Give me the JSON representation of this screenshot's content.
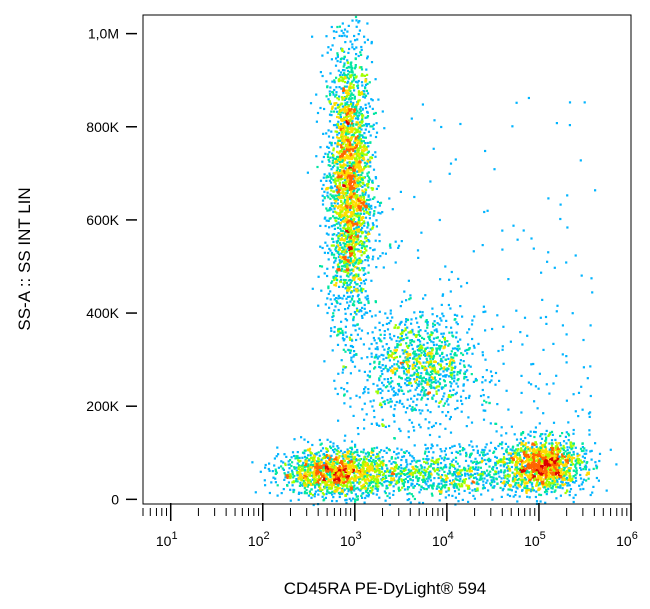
{
  "chart_data": {
    "type": "scatter",
    "subtype": "flow-cytometry density dot plot",
    "xlabel": "CD45RA PE-DyLight® 594",
    "ylabel": "SS-A :: SS INT LIN",
    "x_scale": "log",
    "y_scale": "linear",
    "xlim": [
      5,
      1000000
    ],
    "ylim": [
      -10000,
      1040000
    ],
    "x_ticks": [
      {
        "value": 10,
        "base": "10",
        "exp": "1"
      },
      {
        "value": 100,
        "base": "10",
        "exp": "2"
      },
      {
        "value": 1000,
        "base": "10",
        "exp": "3"
      },
      {
        "value": 10000,
        "base": "10",
        "exp": "4"
      },
      {
        "value": 100000,
        "base": "10",
        "exp": "5"
      },
      {
        "value": 1000000,
        "base": "10",
        "exp": "6"
      }
    ],
    "y_ticks": [
      {
        "value": 0,
        "label": "0"
      },
      {
        "value": 200000,
        "label": "200K"
      },
      {
        "value": 400000,
        "label": "400K"
      },
      {
        "value": 600000,
        "label": "600K"
      },
      {
        "value": 800000,
        "label": "800K"
      },
      {
        "value": 1000000,
        "label": "1,0M"
      }
    ],
    "grid": false,
    "colormap": [
      "#0000c8",
      "#00b4ff",
      "#00e6a0",
      "#a0ff00",
      "#ffdc00",
      "#ff6400",
      "#dc0000"
    ],
    "populations": [
      {
        "x_center": 850,
        "y_center": 680000,
        "x_spread_decades": 0.12,
        "y_spread": 150000,
        "points": 2600
      },
      {
        "x_center": 5000,
        "y_center": 290000,
        "x_spread_decades": 0.3,
        "y_spread": 55000,
        "points": 900
      },
      {
        "x_center": 600,
        "y_center": 60000,
        "x_spread_decades": 0.3,
        "y_spread": 25000,
        "points": 1300
      },
      {
        "x_center": 110000,
        "y_center": 75000,
        "x_spread_decades": 0.22,
        "y_spread": 28000,
        "points": 1300
      },
      {
        "x_center": 8000,
        "y_center": 55000,
        "x_spread_decades": 0.6,
        "y_spread": 25000,
        "points": 900
      }
    ]
  }
}
